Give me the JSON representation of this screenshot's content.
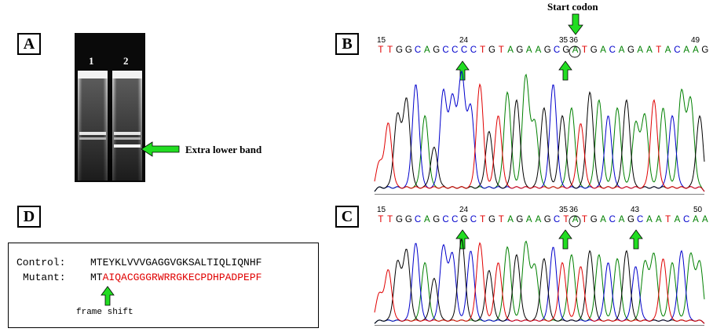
{
  "panels": {
    "a": {
      "label": "A"
    },
    "b": {
      "label": "B"
    },
    "c": {
      "label": "C"
    },
    "d": {
      "label": "D"
    }
  },
  "gel": {
    "lanes": [
      "1",
      "2"
    ],
    "annotation": "Extra lower band"
  },
  "chromatogram_b": {
    "annotation": "Start codon",
    "positions": [
      "15",
      "24",
      "35",
      "36",
      "49"
    ],
    "sequence": "TTGGCAGCCCCTGTAGAAGCGATGACAGAATACAAG",
    "circled": "A"
  },
  "chromatogram_c": {
    "positions": [
      "15",
      "24",
      "35",
      "36",
      "43",
      "50"
    ],
    "sequence": "TTGGCAGCCGCTGTAGAAGCTATGACAGCAATACAA",
    "circled": "A"
  },
  "protein": {
    "control_label": "Control:",
    "control_seq": "MTEYKLVVVGAGGVGKSALTIQLIQNHF",
    "mutant_label": "Mutant:",
    "mutant_prefix": "MT",
    "mutant_shifted": "AIQACGGGRWRRGKECPDHPADPEPF",
    "note": "frame shift"
  },
  "colors": {
    "A": "#008000",
    "C": "#0000cc",
    "G": "#000000",
    "T": "#e00000",
    "arrow": "#22dd22"
  }
}
